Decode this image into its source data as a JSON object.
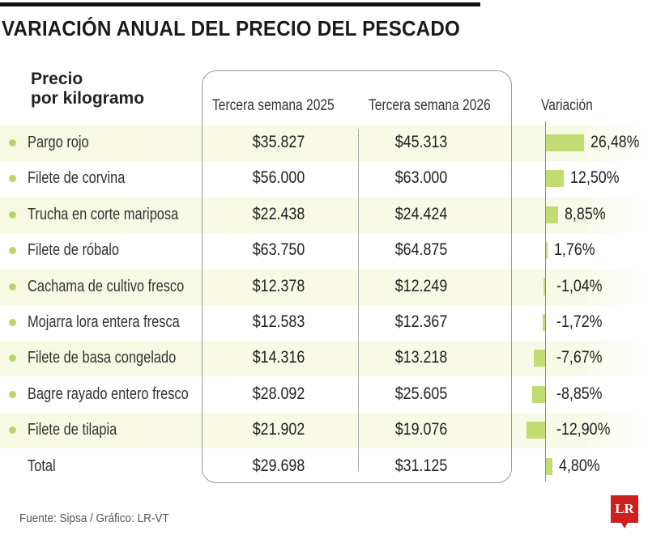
{
  "title": "VARIACIÓN ANUAL DEL PRECIO DEL PESCADO",
  "colors": {
    "bar": "#c0dc72",
    "bullet": "#b9d66a",
    "stripe": "#f7f9e2",
    "logo": "#d01f1f"
  },
  "chart_data": {
    "type": "table",
    "title": "VARIACIÓN ANUAL DEL PRECIO DEL PESCADO",
    "columns": [
      "Precio por kilogramo",
      "Tercera semana 2025",
      "Tercera semana 2026",
      "Variación"
    ],
    "rows": [
      {
        "name": "Pargo rojo",
        "p2025": "$35.827",
        "p2026": "$45.313",
        "variation": 26.48,
        "variation_label": "26,48%"
      },
      {
        "name": "Filete de corvina",
        "p2025": "$56.000",
        "p2026": "$63.000",
        "variation": 12.5,
        "variation_label": "12,50%"
      },
      {
        "name": "Trucha en corte mariposa",
        "p2025": "$22.438",
        "p2026": "$24.424",
        "variation": 8.85,
        "variation_label": "8,85%"
      },
      {
        "name": "Filete de róbalo",
        "p2025": "$63.750",
        "p2026": "$64.875",
        "variation": 1.76,
        "variation_label": "1,76%"
      },
      {
        "name": "Cachama de cultivo fresco",
        "p2025": "$12.378",
        "p2026": "$12.249",
        "variation": -1.04,
        "variation_label": "-1,04%"
      },
      {
        "name": "Mojarra lora entera fresca",
        "p2025": "$12.583",
        "p2026": "$12.367",
        "variation": -1.72,
        "variation_label": "-1,72%"
      },
      {
        "name": "Filete de basa congelado",
        "p2025": "$14.316",
        "p2026": "$13.218",
        "variation": -7.67,
        "variation_label": "-7,67%"
      },
      {
        "name": "Bagre rayado entero fresco",
        "p2025": "$28.092",
        "p2026": "$25.605",
        "variation": -8.85,
        "variation_label": "-8,85%"
      },
      {
        "name": "Filete de tilapia",
        "p2025": "$21.902",
        "p2026": "$19.076",
        "variation": -12.9,
        "variation_label": "-12,90%"
      },
      {
        "name": "Total",
        "p2025": "$29.698",
        "p2026": "$31.125",
        "variation": 4.8,
        "variation_label": "4,80%"
      }
    ]
  },
  "header": {
    "label_line1": "Precio",
    "label_line2": "por kilogramo",
    "col2025": "Tercera semana 2025",
    "col2026": "Tercera semana 2026",
    "colvar": "Variación"
  },
  "footer": {
    "source": "Fuente: Sipsa / Gráfico: LR-VT",
    "logo": "LR"
  }
}
